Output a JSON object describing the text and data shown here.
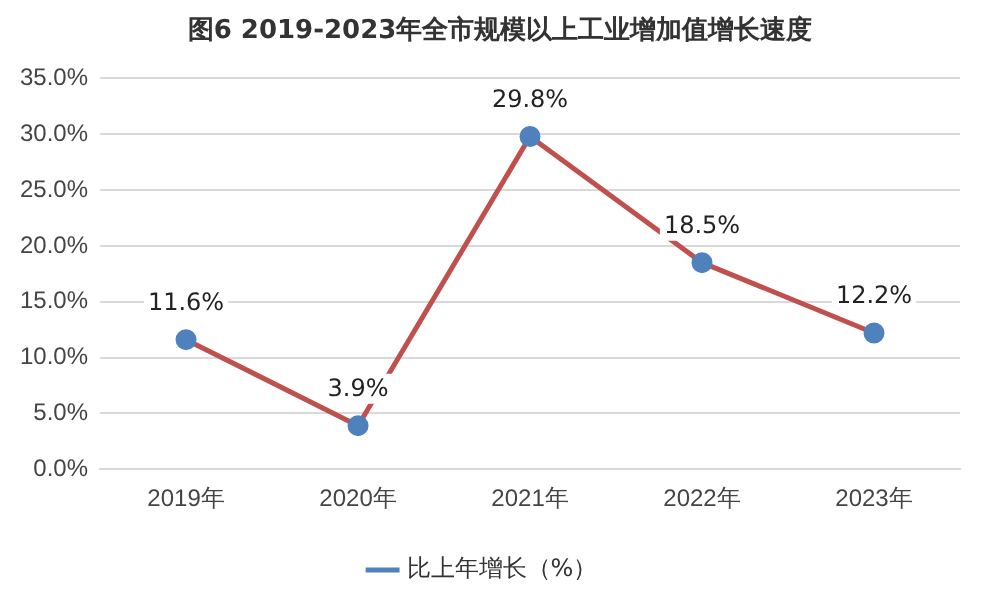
{
  "chart_data": {
    "type": "line",
    "title": "图6 2019-2023年全市规模以上工业增加值增长速度",
    "categories": [
      "2019年",
      "2020年",
      "2021年",
      "2022年",
      "2023年"
    ],
    "series": [
      {
        "name": "比上年增长（%）",
        "color": "#c0504d",
        "values": [
          11.6,
          3.9,
          29.8,
          18.5,
          12.2
        ],
        "value_labels": [
          "11.6%",
          "3.9%",
          "29.8%",
          "18.5%",
          "12.2%"
        ]
      }
    ],
    "ylim": [
      0,
      35
    ],
    "yticks": [
      {
        "value": 0,
        "label": "0.0%"
      },
      {
        "value": 5,
        "label": "5.0%"
      },
      {
        "value": 10,
        "label": "10.0%"
      },
      {
        "value": 15,
        "label": "15.0%"
      },
      {
        "value": 20,
        "label": "20.0%"
      },
      {
        "value": 25,
        "label": "25.0%"
      },
      {
        "value": 30,
        "label": "30.0%"
      },
      {
        "value": 35,
        "label": "35.0%"
      }
    ],
    "grid": "y",
    "legend": "bottom",
    "marker": "circle",
    "line_style": "solid"
  }
}
